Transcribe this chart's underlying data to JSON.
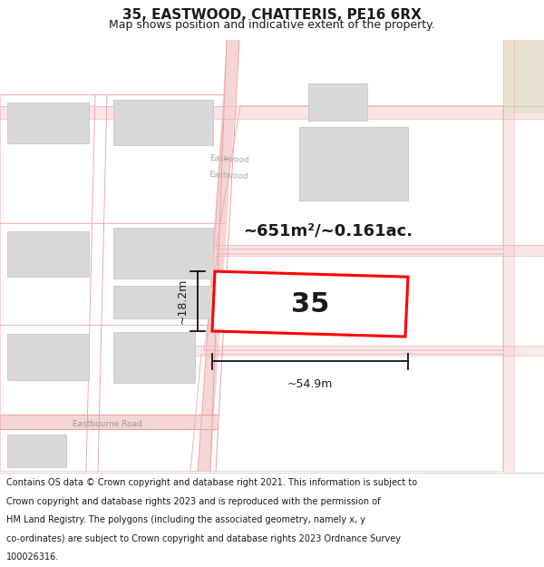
{
  "title": "35, EASTWOOD, CHATTERIS, PE16 6RX",
  "subtitle": "Map shows position and indicative extent of the property.",
  "footer_lines": [
    "Contains OS data © Crown copyright and database right 2021. This information is subject to Crown copyright and database rights 2023 and is reproduced with the permission of",
    "HM Land Registry. The polygons (including the associated geometry, namely x, y co-ordinates) are subject to Crown copyright and database rights 2023 Ordnance Survey",
    "100026316."
  ],
  "bg_color": "#ffffff",
  "map_bg": "#ffffff",
  "road_fill": "#f5d5d5",
  "road_line": "#e8a0a0",
  "plot_line": "#f0b0b0",
  "building_fill": "#d8d8d8",
  "building_outline": "#c0c0c0",
  "highlight_color": "#ff0000",
  "text_color": "#1a1a1a",
  "dim_color": "#000000",
  "road_text_color": "#888888",
  "area_label": "~651m²/~0.161ac.",
  "number_label": "35",
  "width_label": "~54.9m",
  "height_label": "~18.2m",
  "title_fontsize": 11,
  "subtitle_fontsize": 9,
  "area_fontsize": 13,
  "number_fontsize": 22,
  "dim_fontsize": 9,
  "road_fontsize": 6.5,
  "footer_fontsize": 7.0
}
